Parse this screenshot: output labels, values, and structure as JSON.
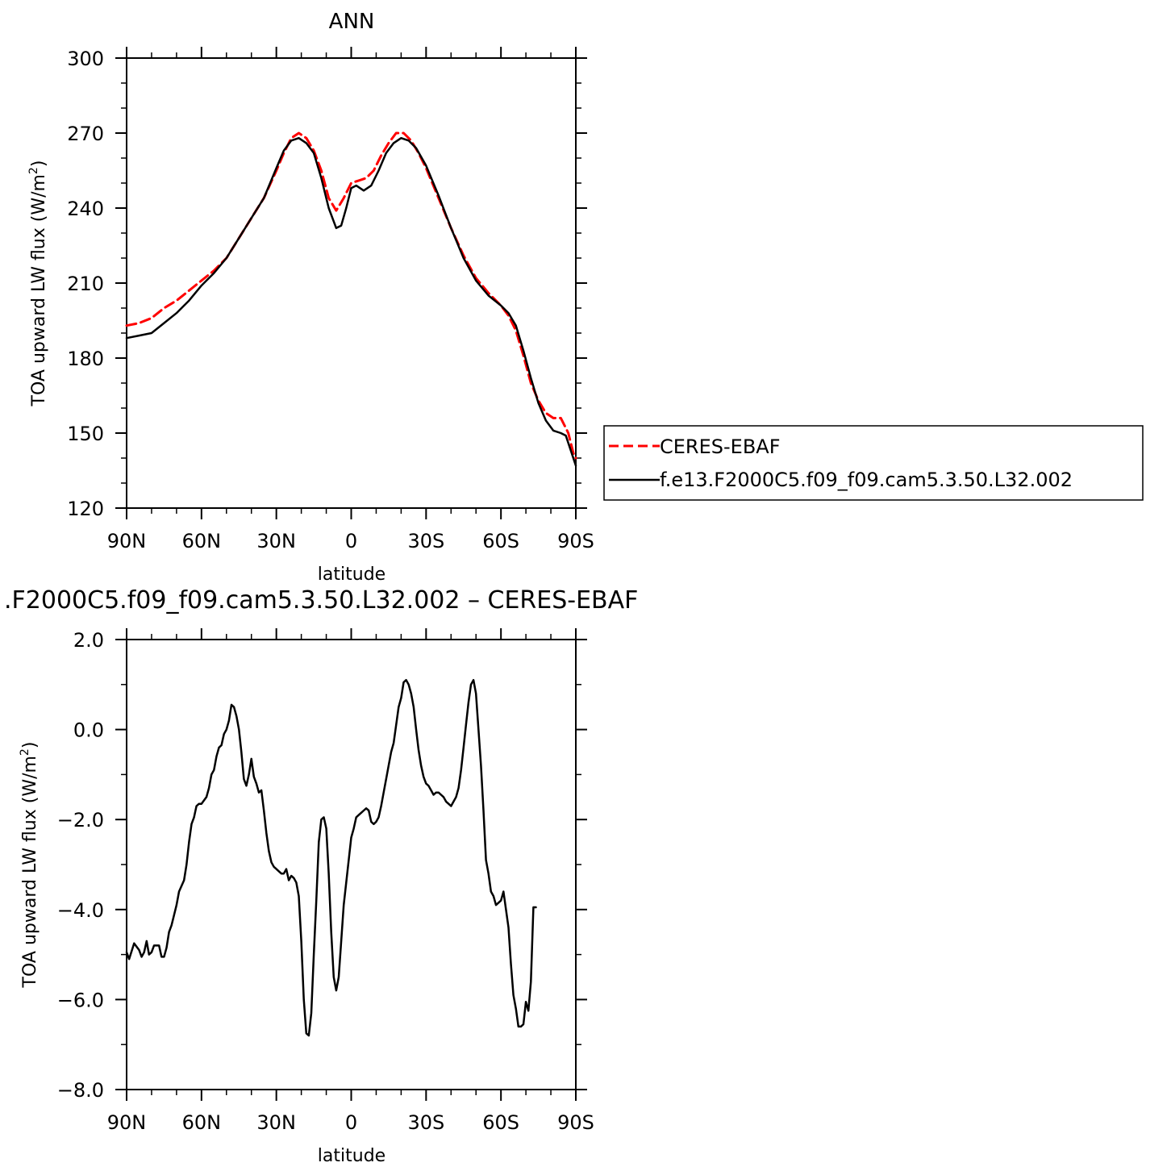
{
  "chart_data": [
    {
      "type": "line",
      "title": "ANN",
      "xlabel": "latitude",
      "ylabel": "TOA upward LW flux (W/m²)",
      "ylabel_main": "TOA upward LW flux (W/m",
      "ylabel_sup": "2",
      "ylabel_tail": ")",
      "xlim": [
        -90,
        90
      ],
      "ylim": [
        120,
        300
      ],
      "x_ticks": [
        -90,
        -60,
        -30,
        0,
        30,
        60,
        90
      ],
      "x_tick_labels": [
        "90N",
        "60N",
        "30N",
        "0",
        "30S",
        "60S",
        "90S"
      ],
      "y_ticks": [
        120,
        150,
        180,
        210,
        240,
        270,
        300
      ],
      "y_tick_labels": [
        "120",
        "150",
        "180",
        "210",
        "240",
        "270",
        "300"
      ],
      "grid": false,
      "legend_position": "right",
      "series": [
        {
          "name": "CERES-EBAF",
          "color": "#ff0000",
          "dash": true,
          "points": [
            [
              -90,
              193
            ],
            [
              -85,
              194
            ],
            [
              -80,
              196
            ],
            [
              -75,
              200
            ],
            [
              -70,
              203
            ],
            [
              -65,
              207
            ],
            [
              -60,
              211
            ],
            [
              -55,
              215
            ],
            [
              -50,
              220
            ],
            [
              -45,
              228
            ],
            [
              -40,
              236
            ],
            [
              -35,
              244
            ],
            [
              -30,
              255
            ],
            [
              -27,
              262
            ],
            [
              -24,
              268
            ],
            [
              -21,
              270
            ],
            [
              -18,
              268
            ],
            [
              -15,
              263
            ],
            [
              -12,
              255
            ],
            [
              -9,
              244
            ],
            [
              -6,
              239
            ],
            [
              -3,
              244
            ],
            [
              0,
              250
            ],
            [
              3,
              251
            ],
            [
              6,
              252
            ],
            [
              9,
              255
            ],
            [
              12,
              261
            ],
            [
              15,
              266
            ],
            [
              18,
              270
            ],
            [
              21,
              270
            ],
            [
              24,
              267
            ],
            [
              27,
              262
            ],
            [
              30,
              256
            ],
            [
              35,
              244
            ],
            [
              40,
              232
            ],
            [
              45,
              221
            ],
            [
              50,
              212
            ],
            [
              55,
              206
            ],
            [
              60,
              201
            ],
            [
              63,
              197
            ],
            [
              66,
              191
            ],
            [
              69,
              181
            ],
            [
              72,
              170
            ],
            [
              75,
              163
            ],
            [
              78,
              158
            ],
            [
              81,
              156
            ],
            [
              84,
              156
            ],
            [
              87,
              150
            ],
            [
              89,
              142
            ],
            [
              90,
              140
            ]
          ]
        },
        {
          "name": "f.e13.F2000C5.f09_f09.cam5.3.50.L32.002",
          "color": "#000000",
          "dash": false,
          "points": [
            [
              -90,
              188
            ],
            [
              -85,
              189
            ],
            [
              -80,
              190
            ],
            [
              -75,
              194
            ],
            [
              -70,
              198
            ],
            [
              -65,
              203
            ],
            [
              -60,
              209
            ],
            [
              -55,
              214
            ],
            [
              -50,
              220
            ],
            [
              -45,
              228
            ],
            [
              -40,
              236
            ],
            [
              -35,
              244
            ],
            [
              -30,
              256
            ],
            [
              -27,
              263
            ],
            [
              -24,
              267
            ],
            [
              -21,
              268
            ],
            [
              -18,
              266
            ],
            [
              -15,
              262
            ],
            [
              -12,
              252
            ],
            [
              -9,
              240
            ],
            [
              -6,
              232
            ],
            [
              -4,
              233
            ],
            [
              -2,
              240
            ],
            [
              0,
              248
            ],
            [
              2,
              249
            ],
            [
              5,
              247
            ],
            [
              8,
              249
            ],
            [
              11,
              255
            ],
            [
              14,
              262
            ],
            [
              17,
              266
            ],
            [
              20,
              268
            ],
            [
              23,
              267
            ],
            [
              26,
              264
            ],
            [
              30,
              257
            ],
            [
              35,
              245
            ],
            [
              40,
              232
            ],
            [
              45,
              220
            ],
            [
              50,
              211
            ],
            [
              55,
              205
            ],
            [
              60,
              201
            ],
            [
              63,
              198
            ],
            [
              66,
              193
            ],
            [
              69,
              183
            ],
            [
              72,
              172
            ],
            [
              75,
              162
            ],
            [
              78,
              155
            ],
            [
              81,
              151
            ],
            [
              84,
              150
            ],
            [
              86,
              149
            ],
            [
              88,
              143
            ],
            [
              90,
              137
            ]
          ]
        }
      ]
    },
    {
      "type": "line",
      "title": ".F2000C5.f09_f09.cam5.3.50.L32.002 – CERES-EBAF",
      "xlabel": "latitude",
      "ylabel": "TOA upward LW flux (W/m²)",
      "ylabel_main": "TOA upward LW flux (W/m",
      "ylabel_sup": "2",
      "ylabel_tail": ")",
      "xlim": [
        -90,
        90
      ],
      "ylim": [
        -8.0,
        2.0
      ],
      "x_ticks": [
        -90,
        -60,
        -30,
        0,
        30,
        60,
        90
      ],
      "x_tick_labels": [
        "90N",
        "60N",
        "30N",
        "0",
        "30S",
        "60S",
        "90S"
      ],
      "y_ticks": [
        -8,
        -6,
        -4,
        -2,
        0,
        2
      ],
      "y_tick_labels": [
        "−8.0",
        "−6.0",
        "−4.0",
        "−2.0",
        "0.0",
        "2.0"
      ],
      "grid": false,
      "series": [
        {
          "color": "#000000",
          "dash": false,
          "points": [
            [
              -90,
              -4.95
            ],
            [
              -89,
              -5.1
            ],
            [
              -87,
              -4.75
            ],
            [
              -85,
              -4.9
            ],
            [
              -84,
              -5.05
            ],
            [
              -83,
              -4.95
            ],
            [
              -82,
              -4.7
            ],
            [
              -81,
              -5.0
            ],
            [
              -80,
              -4.95
            ],
            [
              -79,
              -4.8
            ],
            [
              -77,
              -4.8
            ],
            [
              -76,
              -5.05
            ],
            [
              -75,
              -5.05
            ],
            [
              -74,
              -4.85
            ],
            [
              -73,
              -4.5
            ],
            [
              -72,
              -4.35
            ],
            [
              -70,
              -3.9
            ],
            [
              -69,
              -3.6
            ],
            [
              -67,
              -3.35
            ],
            [
              -66,
              -3.0
            ],
            [
              -65,
              -2.5
            ],
            [
              -64,
              -2.1
            ],
            [
              -63,
              -1.95
            ],
            [
              -62,
              -1.7
            ],
            [
              -61,
              -1.65
            ],
            [
              -60,
              -1.65
            ],
            [
              -58,
              -1.5
            ],
            [
              -57,
              -1.3
            ],
            [
              -56,
              -1.0
            ],
            [
              -55,
              -0.9
            ],
            [
              -54,
              -0.6
            ],
            [
              -53,
              -0.4
            ],
            [
              -52,
              -0.35
            ],
            [
              -51,
              -0.1
            ],
            [
              -50,
              0.0
            ],
            [
              -49,
              0.2
            ],
            [
              -48,
              0.55
            ],
            [
              -47,
              0.5
            ],
            [
              -46,
              0.3
            ],
            [
              -45,
              0.0
            ],
            [
              -44,
              -0.5
            ],
            [
              -43,
              -1.1
            ],
            [
              -42,
              -1.25
            ],
            [
              -41,
              -1.0
            ],
            [
              -40,
              -0.65
            ],
            [
              -39,
              -1.05
            ],
            [
              -38,
              -1.2
            ],
            [
              -37,
              -1.4
            ],
            [
              -36,
              -1.35
            ],
            [
              -35,
              -1.8
            ],
            [
              -34,
              -2.3
            ],
            [
              -33,
              -2.7
            ],
            [
              -32,
              -2.95
            ],
            [
              -31,
              -3.05
            ],
            [
              -30,
              -3.1
            ],
            [
              -29,
              -3.15
            ],
            [
              -28,
              -3.2
            ],
            [
              -27,
              -3.2
            ],
            [
              -26,
              -3.1
            ],
            [
              -25,
              -3.35
            ],
            [
              -24,
              -3.25
            ],
            [
              -23,
              -3.3
            ],
            [
              -22,
              -3.4
            ],
            [
              -21,
              -3.7
            ],
            [
              -20,
              -4.7
            ],
            [
              -19,
              -6.0
            ],
            [
              -18,
              -6.75
            ],
            [
              -17,
              -6.8
            ],
            [
              -16,
              -6.3
            ],
            [
              -15,
              -5.0
            ],
            [
              -14,
              -3.8
            ],
            [
              -13,
              -2.5
            ],
            [
              -12,
              -2.0
            ],
            [
              -11,
              -1.95
            ],
            [
              -10,
              -2.2
            ],
            [
              -9,
              -3.2
            ],
            [
              -8,
              -4.5
            ],
            [
              -7,
              -5.5
            ],
            [
              -6,
              -5.8
            ],
            [
              -5,
              -5.5
            ],
            [
              -4,
              -4.7
            ],
            [
              -3,
              -3.9
            ],
            [
              -2,
              -3.4
            ],
            [
              -1,
              -2.9
            ],
            [
              0,
              -2.4
            ],
            [
              1,
              -2.2
            ],
            [
              2,
              -1.95
            ],
            [
              3,
              -1.9
            ],
            [
              4,
              -1.85
            ],
            [
              5,
              -1.8
            ],
            [
              6,
              -1.75
            ],
            [
              7,
              -1.8
            ],
            [
              8,
              -2.05
            ],
            [
              9,
              -2.1
            ],
            [
              10,
              -2.05
            ],
            [
              11,
              -1.95
            ],
            [
              12,
              -1.7
            ],
            [
              13,
              -1.4
            ],
            [
              14,
              -1.1
            ],
            [
              15,
              -0.8
            ],
            [
              16,
              -0.5
            ],
            [
              17,
              -0.3
            ],
            [
              18,
              0.1
            ],
            [
              19,
              0.5
            ],
            [
              20,
              0.7
            ],
            [
              21,
              1.05
            ],
            [
              22,
              1.1
            ],
            [
              23,
              1.0
            ],
            [
              24,
              0.8
            ],
            [
              25,
              0.5
            ],
            [
              26,
              0.0
            ],
            [
              27,
              -0.45
            ],
            [
              28,
              -0.8
            ],
            [
              29,
              -1.05
            ],
            [
              30,
              -1.2
            ],
            [
              31,
              -1.25
            ],
            [
              32,
              -1.35
            ],
            [
              33,
              -1.45
            ],
            [
              34,
              -1.4
            ],
            [
              35,
              -1.4
            ],
            [
              36,
              -1.45
            ],
            [
              37,
              -1.5
            ],
            [
              38,
              -1.6
            ],
            [
              39,
              -1.65
            ],
            [
              40,
              -1.7
            ],
            [
              41,
              -1.6
            ],
            [
              42,
              -1.5
            ],
            [
              43,
              -1.3
            ],
            [
              44,
              -0.9
            ],
            [
              45,
              -0.4
            ],
            [
              46,
              0.1
            ],
            [
              47,
              0.6
            ],
            [
              48,
              1.0
            ],
            [
              49,
              1.1
            ],
            [
              50,
              0.8
            ],
            [
              51,
              0.0
            ],
            [
              52,
              -0.8
            ],
            [
              53,
              -1.8
            ],
            [
              54,
              -2.9
            ],
            [
              55,
              -3.2
            ],
            [
              56,
              -3.6
            ],
            [
              57,
              -3.7
            ],
            [
              58,
              -3.9
            ],
            [
              59,
              -3.85
            ],
            [
              60,
              -3.8
            ],
            [
              61,
              -3.6
            ],
            [
              62,
              -4.0
            ],
            [
              63,
              -4.4
            ],
            [
              64,
              -5.2
            ],
            [
              65,
              -5.9
            ],
            [
              66,
              -6.2
            ],
            [
              67,
              -6.6
            ],
            [
              68,
              -6.6
            ],
            [
              69,
              -6.55
            ],
            [
              70,
              -6.05
            ],
            [
              71,
              -6.25
            ],
            [
              72,
              -5.6
            ],
            [
              73,
              -3.95
            ],
            [
              74,
              -3.95
            ]
          ]
        }
      ]
    }
  ]
}
